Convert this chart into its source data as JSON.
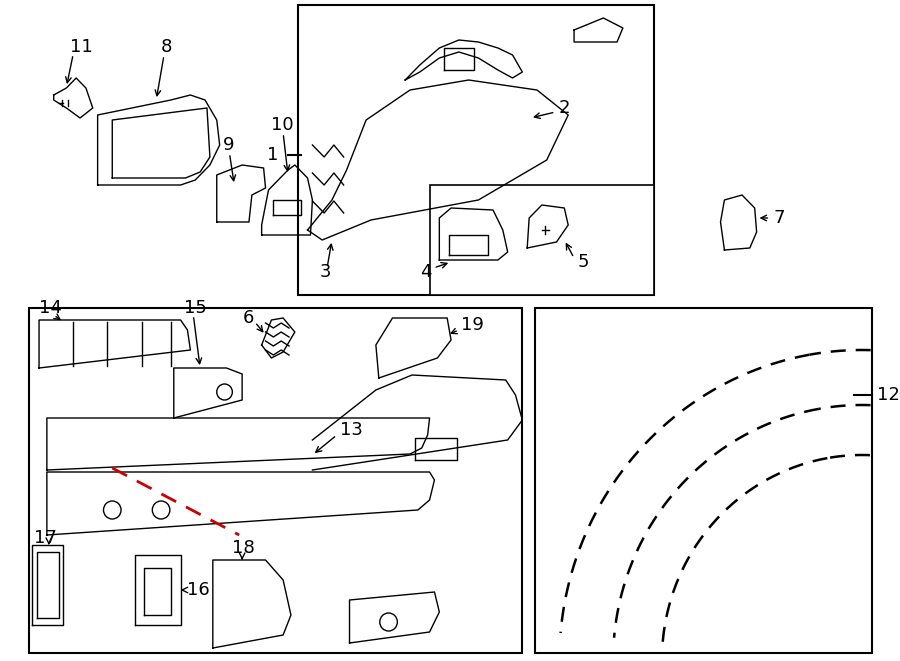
{
  "bg_color": "#ffffff",
  "line_color": "#000000",
  "red_color": "#cc0000",
  "fig_w": 9.0,
  "fig_h": 6.61,
  "dpi": 100,
  "pw": 900,
  "ph": 661
}
